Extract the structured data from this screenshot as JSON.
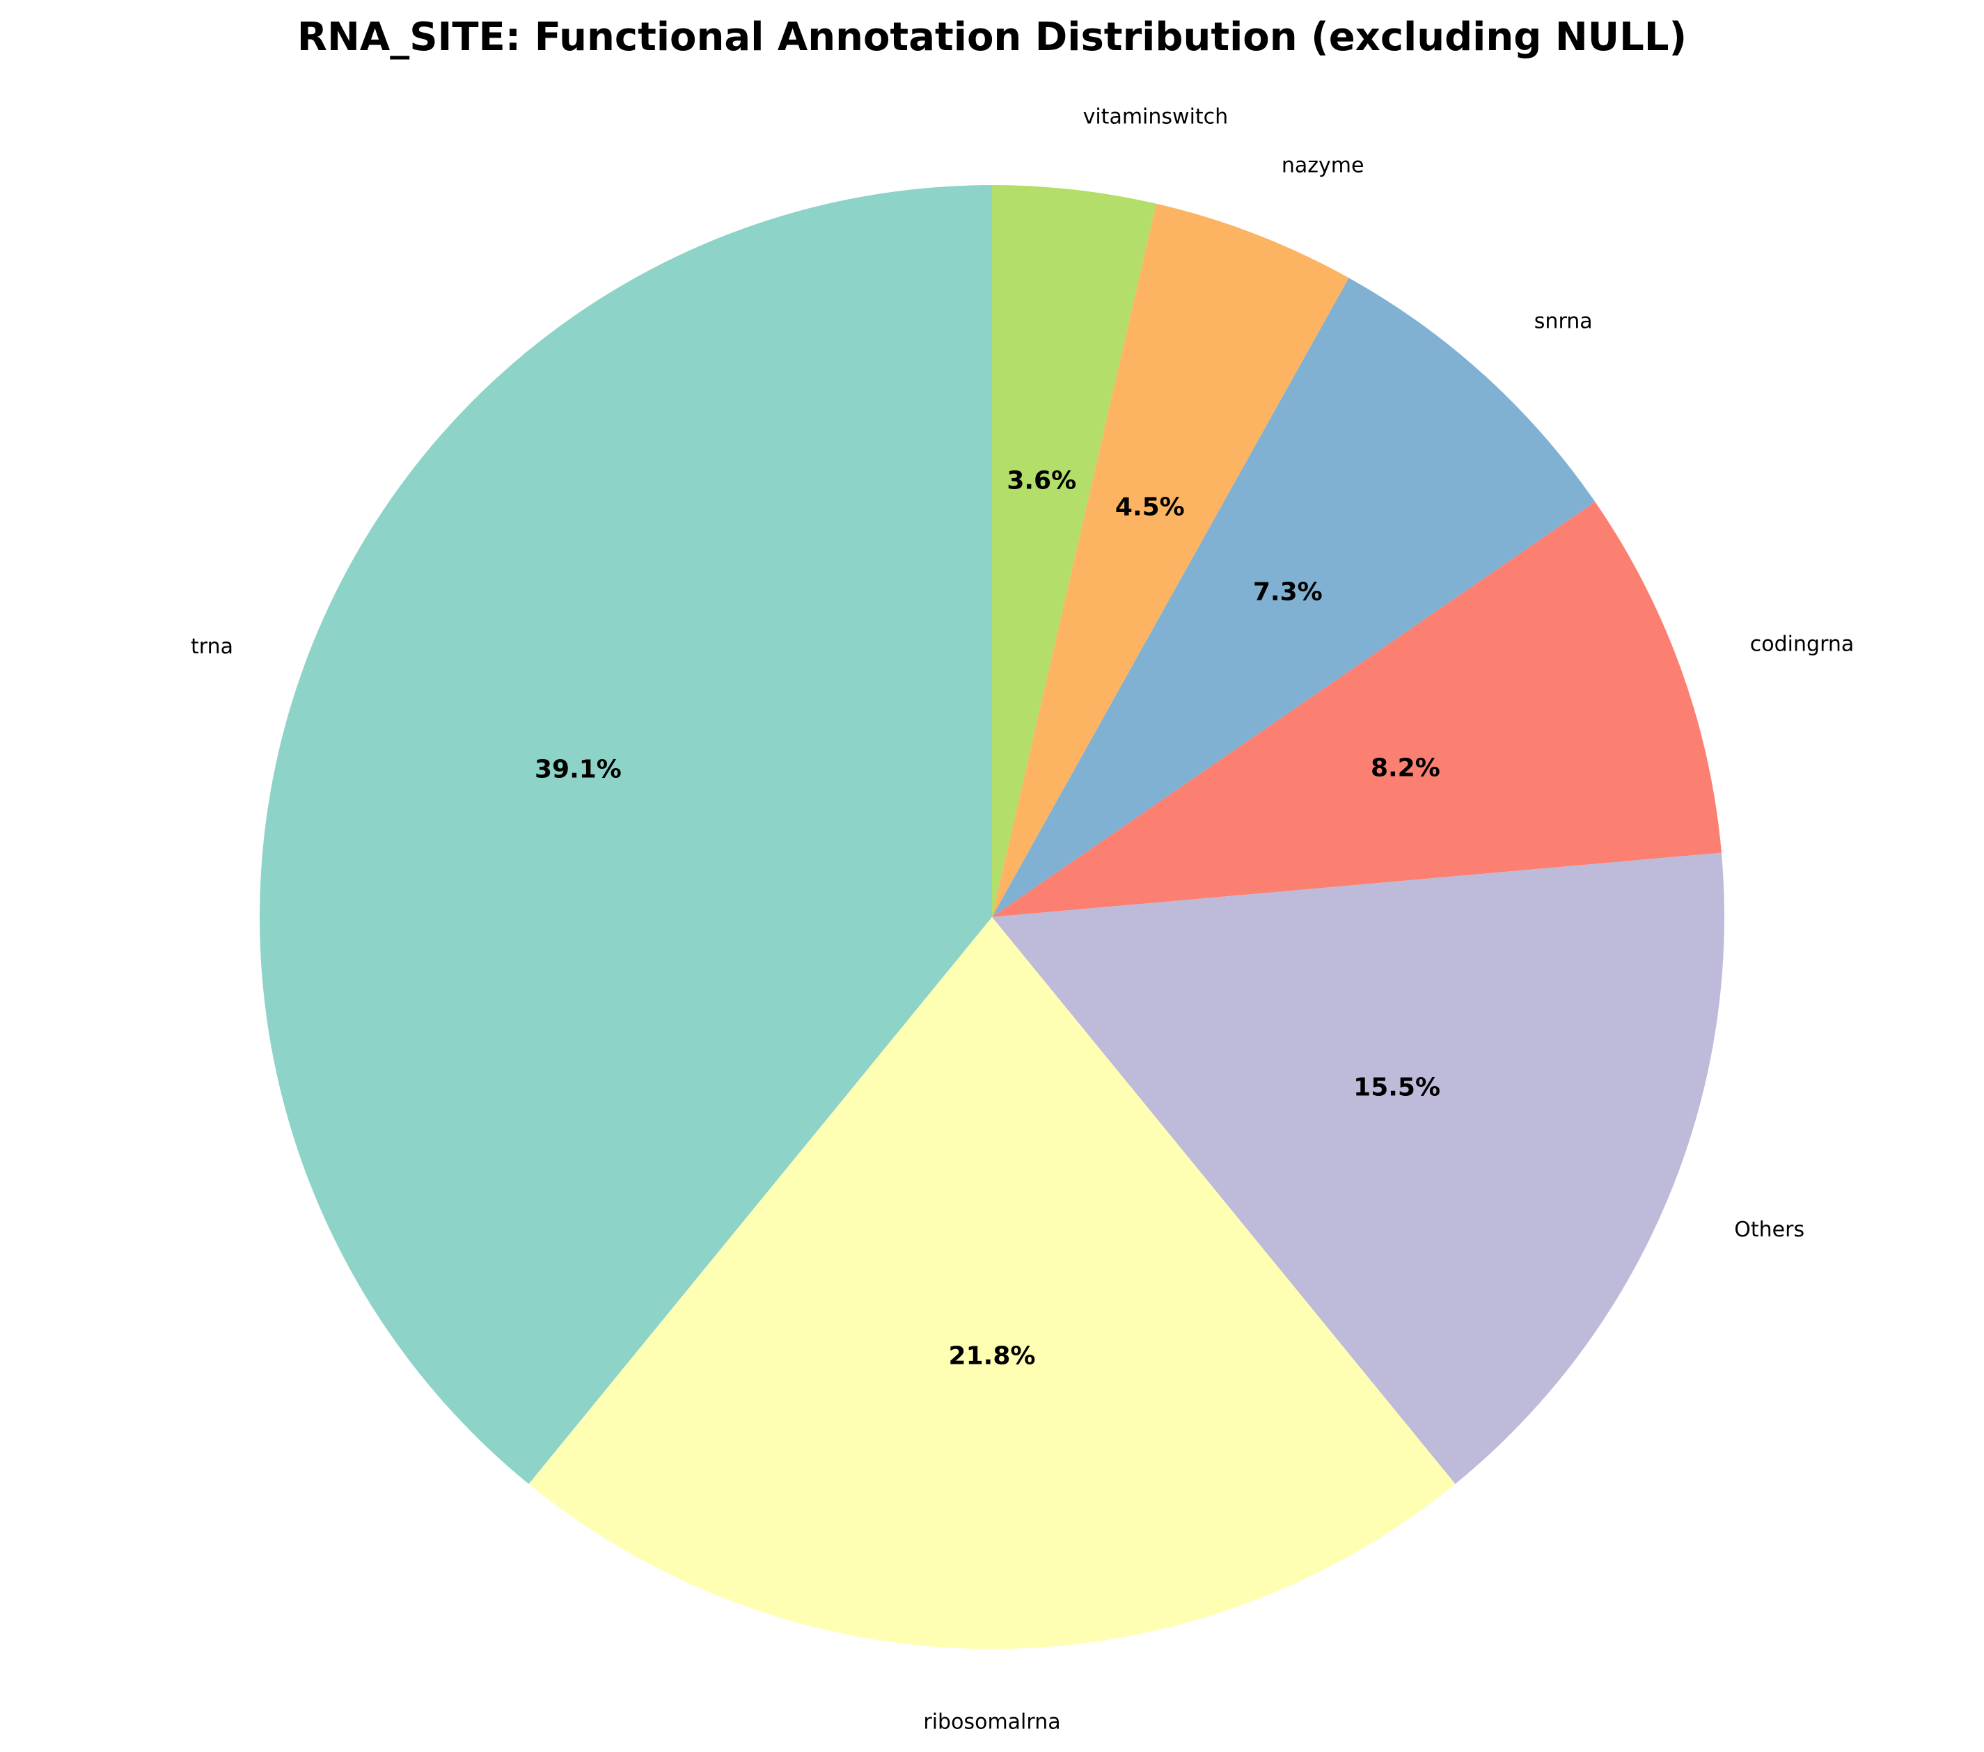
{
  "chart_data": {
    "type": "pie",
    "title": "RNA_SITE: Functional Annotation Distribution (excluding NULL)",
    "slices": [
      {
        "label": "vitaminswitch",
        "value": 3.6,
        "pct_label": "3.6%",
        "color": "#b3de69"
      },
      {
        "label": "nazyme",
        "value": 4.5,
        "pct_label": "4.5%",
        "color": "#fdb462"
      },
      {
        "label": "snrna",
        "value": 7.3,
        "pct_label": "7.3%",
        "color": "#80b1d3"
      },
      {
        "label": "codingrna",
        "value": 8.2,
        "pct_label": "8.2%",
        "color": "#fb8072"
      },
      {
        "label": "Others",
        "value": 15.5,
        "pct_label": "15.5%",
        "color": "#bebada"
      },
      {
        "label": "ribosomalrna",
        "value": 21.8,
        "pct_label": "21.8%",
        "color": "#ffffb3"
      },
      {
        "label": "trna",
        "value": 39.1,
        "pct_label": "39.1%",
        "color": "#8dd3c7"
      }
    ],
    "start_angle": "top",
    "direction": "clockwise",
    "legend": "none"
  }
}
